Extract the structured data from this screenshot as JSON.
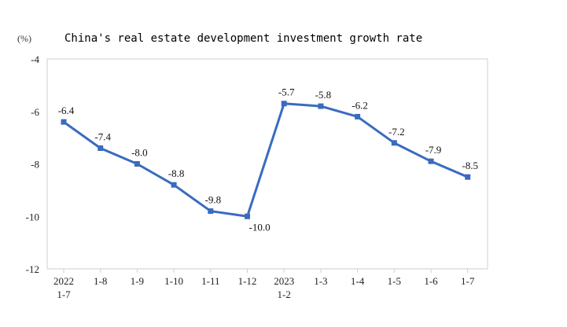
{
  "chart_data": {
    "type": "line",
    "title": "China's real estate development investment growth rate",
    "unit": "(%)",
    "categories": [
      "2022\n1-7",
      "1-8",
      "1-9",
      "1-10",
      "1-11",
      "1-12",
      "2023\n1-2",
      "1-3",
      "1-4",
      "1-5",
      "1-6",
      "1-7"
    ],
    "series": [
      {
        "values": [
          -6.4,
          -7.4,
          -8.0,
          -8.8,
          -9.8,
          -10.0,
          -5.7,
          -5.8,
          -6.2,
          -7.2,
          -7.9,
          -8.5
        ]
      }
    ],
    "value_labels": [
      "-6.4",
      "-7.4",
      "-8.0",
      "-8.8",
      "-9.8",
      "-10.0",
      "-5.7",
      "-5.8",
      "-6.2",
      "-7.2",
      "-7.9",
      "-8.5"
    ],
    "ylim": [
      -12,
      -4
    ],
    "yticks": [
      -4,
      -6,
      -8,
      -10,
      -12
    ],
    "grid": false,
    "line_color": "#3a6bbf"
  }
}
